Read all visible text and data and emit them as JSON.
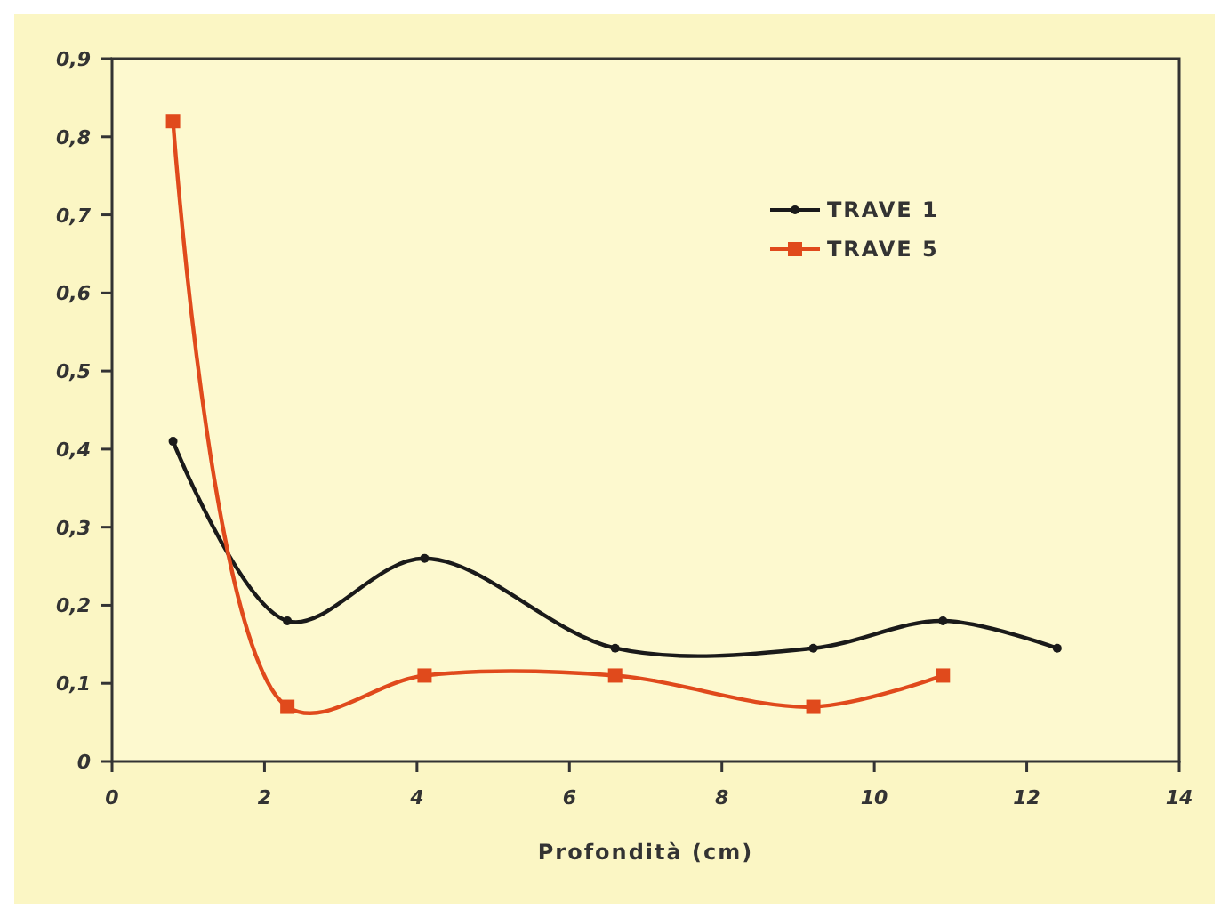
{
  "chart_data": {
    "type": "line",
    "xlabel": "Profondità (cm)",
    "xlim": [
      0,
      14
    ],
    "xticks": [
      0,
      2,
      4,
      6,
      8,
      10,
      12,
      14
    ],
    "ylim": [
      0,
      0.9
    ],
    "yticks": [
      {
        "value": 0,
        "label": "0"
      },
      {
        "value": 0.1,
        "label": "0,1"
      },
      {
        "value": 0.2,
        "label": "0,2"
      },
      {
        "value": 0.3,
        "label": "0,3"
      },
      {
        "value": 0.4,
        "label": "0,4"
      },
      {
        "value": 0.5,
        "label": "0,5"
      },
      {
        "value": 0.6,
        "label": "0,6"
      },
      {
        "value": 0.7,
        "label": "0,7"
      },
      {
        "value": 0.8,
        "label": "0,8"
      },
      {
        "value": 0.9,
        "label": "0,9"
      }
    ],
    "legend": "top right",
    "grid": false,
    "series": [
      {
        "name": "TRAVE 1",
        "color": "#1a1a1a",
        "marker": "circle",
        "x": [
          0.8,
          2.3,
          4.1,
          6.6,
          9.2,
          10.9,
          12.4
        ],
        "values": [
          0.41,
          0.18,
          0.26,
          0.145,
          0.145,
          0.18,
          0.145
        ]
      },
      {
        "name": "TRAVE 5",
        "color": "#e04a1c",
        "marker": "square",
        "x": [
          0.8,
          2.3,
          4.1,
          6.6,
          9.2,
          10.9
        ],
        "values": [
          0.82,
          0.07,
          0.11,
          0.11,
          0.07,
          0.11
        ]
      }
    ]
  }
}
